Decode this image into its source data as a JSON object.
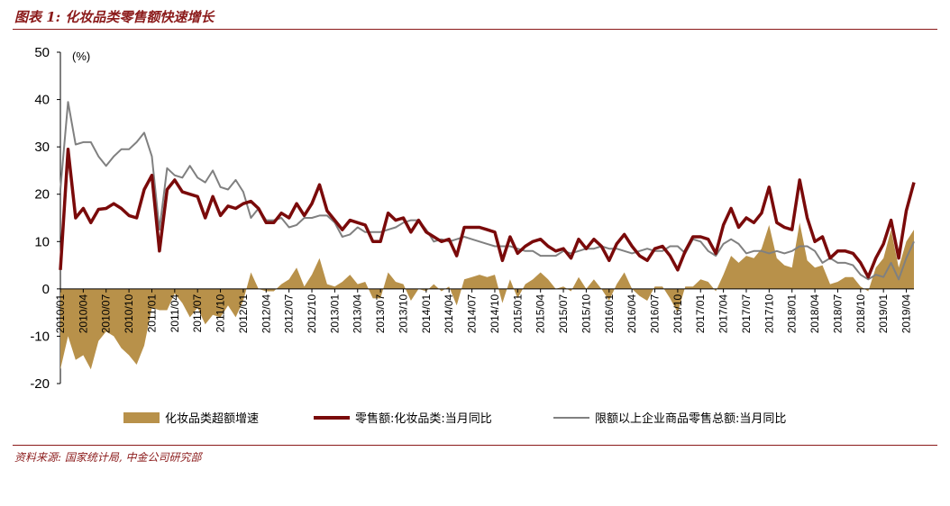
{
  "title": "图表 1: 化妆品类零售额快速增长",
  "source": "资料来源: 国家统计局, 中金公司研究部",
  "chart_data": {
    "type": "line",
    "unit_label": "(%)",
    "ylim": [
      -20,
      50
    ],
    "yticks": [
      -20,
      -10,
      0,
      10,
      20,
      30,
      40,
      50
    ],
    "x_labels": [
      "2010/01",
      "2010/04",
      "2010/07",
      "2010/10",
      "2011/01",
      "2011/04",
      "2011/07",
      "2011/10",
      "2012/01",
      "2012/04",
      "2012/07",
      "2012/10",
      "2013/01",
      "2013/04",
      "2013/07",
      "2013/10",
      "2014/01",
      "2014/04",
      "2014/07",
      "2014/10",
      "2015/01",
      "2015/04",
      "2015/07",
      "2015/10",
      "2016/01",
      "2016/04",
      "2016/07",
      "2016/10",
      "2017/01",
      "2017/04",
      "2017/07",
      "2017/10",
      "2018/01",
      "2018/04",
      "2018/07",
      "2018/10",
      "2019/01",
      "2019/04"
    ],
    "start_month": "2010/01",
    "colors": {
      "excess": "#b8914a",
      "cosmetics": "#7a0a0a",
      "total": "#808080"
    },
    "series": [
      {
        "name": "零售额:化妆品类:当月同比",
        "kind": "line",
        "values": [
          4,
          29.5,
          15,
          17,
          14,
          16.8,
          17,
          18,
          17,
          15.5,
          15,
          21,
          24,
          8,
          21,
          23,
          20.5,
          20,
          19.5,
          15,
          19.5,
          15.5,
          17.5,
          17,
          18,
          18.5,
          17,
          14,
          14,
          16,
          15,
          18,
          15.5,
          18,
          22,
          16.5,
          14.5,
          12.5,
          14.5,
          14,
          13.5,
          10,
          10,
          16,
          14.5,
          15,
          12,
          14.5,
          12,
          11,
          10,
          10.5,
          7,
          13,
          13,
          13,
          12.5,
          12,
          6,
          11,
          7.5,
          9,
          10,
          10.5,
          9,
          8,
          8.5,
          6.5,
          10.5,
          8.5,
          10.5,
          9,
          6,
          9.5,
          11.5,
          9,
          7,
          6,
          8.5,
          9,
          7,
          4,
          8,
          11,
          11,
          10.5,
          7.5,
          13.5,
          17,
          13,
          15,
          14,
          16,
          21.5,
          14,
          13,
          12.5,
          23,
          15,
          10,
          11,
          6.5,
          8,
          8,
          7.5,
          5.5,
          2.5,
          6.5,
          9.5,
          14.5,
          6.5,
          16.5,
          22.5
        ]
      },
      {
        "name": "限额以上企业商品零售总额:当月同比",
        "kind": "line",
        "values": [
          21,
          39.5,
          30.5,
          31,
          31,
          28,
          26,
          28,
          29.5,
          29.5,
          31,
          33,
          28,
          12.5,
          25.5,
          24,
          23.5,
          26,
          23.5,
          22.5,
          25,
          21.5,
          21,
          23,
          20.5,
          15,
          17,
          14.5,
          14.5,
          15,
          13,
          13.5,
          15,
          15,
          15.5,
          15.5,
          14,
          11,
          11.5,
          13,
          12,
          12,
          12,
          12.5,
          13,
          14,
          14.5,
          14.5,
          12.5,
          10,
          10.5,
          10,
          10.5,
          11,
          10.5,
          10,
          9.5,
          9,
          9,
          9,
          8.5,
          8,
          8,
          7,
          7,
          7,
          8,
          7.5,
          8,
          8.5,
          8.5,
          9,
          8.5,
          8.5,
          8,
          7.5,
          8,
          8.5,
          8,
          8,
          9,
          9,
          7.5,
          10.5,
          10,
          8,
          7,
          9.5,
          10.5,
          9.5,
          7.5,
          8,
          8,
          7.5,
          8,
          7.5,
          8,
          9,
          9,
          8,
          5.5,
          6.5,
          5.5,
          5.5,
          5,
          3,
          2,
          3,
          2.5,
          5.5,
          2,
          6.5,
          10
        ]
      },
      {
        "name": "化妆品类超额增速",
        "kind": "area",
        "values": [
          -17,
          -10,
          -15,
          -14,
          -17,
          -11,
          -9,
          -10,
          -12.5,
          -14,
          -16,
          -12,
          -4,
          -4.5,
          -4.5,
          -1,
          -3,
          -6,
          -4,
          -7.5,
          -5.5,
          -6,
          -3.5,
          -6,
          -2.5,
          3.5,
          0,
          -0.5,
          -0.5,
          1,
          2,
          4.5,
          0.5,
          3,
          6.5,
          1,
          0.5,
          1.5,
          3,
          1,
          1.5,
          -2,
          -2,
          3.5,
          1.5,
          1,
          -2.5,
          0,
          -0.5,
          1,
          -0.5,
          0.5,
          -3.5,
          2,
          2.5,
          3,
          2.5,
          3,
          -3,
          2,
          -2,
          1,
          2,
          3.5,
          2,
          0,
          0.5,
          -0.5,
          2.5,
          0,
          2,
          0,
          -2.5,
          1,
          3.5,
          0,
          -1.5,
          -2.5,
          0.5,
          0.5,
          -2,
          -5,
          0.5,
          0.5,
          2,
          1.5,
          -0.5,
          3,
          7,
          5.5,
          7,
          6.5,
          8.5,
          13.5,
          6.5,
          5,
          4.5,
          14,
          6,
          4.5,
          5,
          1,
          1.5,
          2.5,
          2.5,
          0.5,
          -0.5,
          4.5,
          6.5,
          12.5,
          4.5,
          10,
          12.5
        ]
      }
    ],
    "legend": [
      {
        "label": "化妆品类超额增速",
        "kind": "area"
      },
      {
        "label": "零售额:化妆品类:当月同比",
        "kind": "line-thick"
      },
      {
        "label": "限额以上企业商品零售总额:当月同比",
        "kind": "line-thin"
      }
    ]
  }
}
